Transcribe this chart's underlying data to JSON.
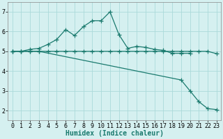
{
  "line1_x": [
    0,
    1,
    2,
    3,
    4,
    5,
    6,
    7,
    8,
    9,
    10,
    11,
    12,
    13,
    14,
    15,
    16,
    17,
    18,
    19,
    20
  ],
  "line1_y": [
    5.0,
    5.0,
    5.1,
    5.15,
    5.35,
    5.6,
    6.1,
    5.8,
    6.25,
    6.55,
    6.55,
    7.0,
    5.85,
    5.15,
    5.25,
    5.2,
    5.1,
    5.05,
    4.9,
    4.9,
    4.9
  ],
  "line2_x": [
    0,
    1,
    2,
    3,
    4,
    5,
    6,
    7,
    8,
    9,
    10,
    11,
    12,
    13,
    14,
    15,
    16,
    17,
    18,
    19,
    20,
    21,
    22,
    23
  ],
  "line2_y": [
    5.0,
    5.0,
    5.0,
    5.0,
    5.0,
    5.0,
    5.0,
    5.0,
    5.0,
    5.0,
    5.0,
    5.0,
    5.0,
    5.0,
    5.0,
    5.0,
    5.0,
    5.0,
    5.0,
    5.0,
    5.0,
    5.0,
    5.0,
    4.88
  ],
  "line3_x": [
    0,
    1,
    2,
    3,
    19,
    20,
    21,
    22,
    23
  ],
  "line3_y": [
    5.0,
    5.0,
    5.0,
    5.0,
    3.55,
    3.0,
    2.45,
    2.1,
    2.05
  ],
  "line_color": "#1a7a6e",
  "bg_color": "#d5f0f0",
  "grid_color": "#aadada",
  "xlabel": "Humidex (Indice chaleur)",
  "xlim": [
    -0.5,
    23.5
  ],
  "ylim": [
    1.5,
    7.5
  ],
  "yticks": [
    2,
    3,
    4,
    5,
    6,
    7
  ],
  "xticks": [
    0,
    1,
    2,
    3,
    4,
    5,
    6,
    7,
    8,
    9,
    10,
    11,
    12,
    13,
    14,
    15,
    16,
    17,
    18,
    19,
    20,
    21,
    22,
    23
  ],
  "marker": "+",
  "markersize": 4,
  "linewidth": 0.9,
  "xlabel_fontsize": 7,
  "tick_fontsize": 6
}
